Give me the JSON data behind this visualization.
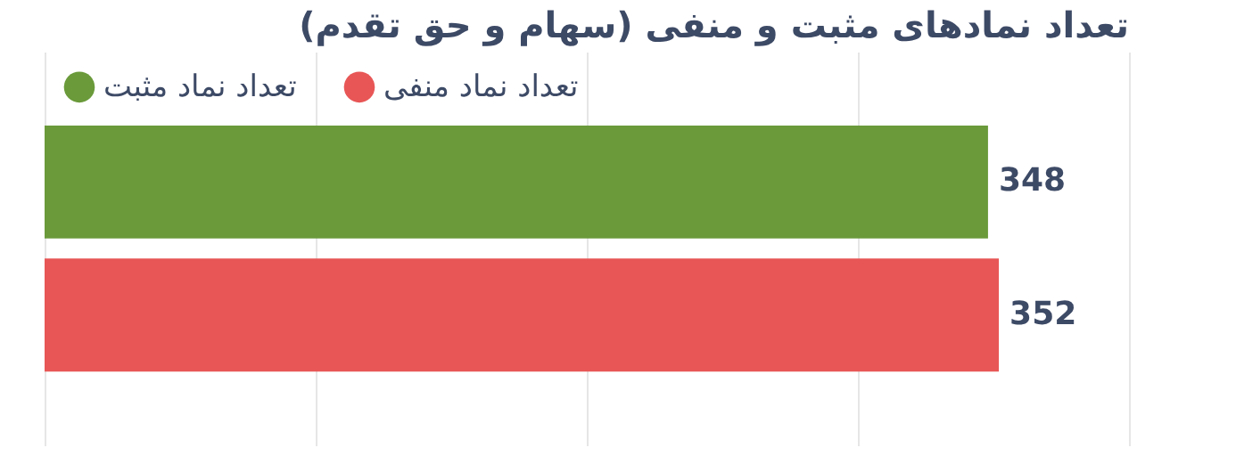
{
  "chart_data": {
    "type": "bar",
    "orientation": "horizontal",
    "title": "تعداد نمادهای مثبت و منفی (سهام و حق تقدم)",
    "categories": [
      null
    ],
    "series": [
      {
        "name": "تعداد نماد مثبت",
        "color": "#6a9a3a",
        "values": [
          348
        ]
      },
      {
        "name": "تعداد نماد منفی",
        "color": "#e85656",
        "values": [
          352
        ]
      }
    ],
    "xlim": [
      0,
      400
    ],
    "xticks": [
      {
        "value": 0,
        "label": null
      },
      {
        "value": 100,
        "label": null
      },
      {
        "value": 200,
        "label": null
      },
      {
        "value": 300,
        "label": null
      },
      {
        "value": 400,
        "label": null
      }
    ],
    "tick_labels": false,
    "grid": "x",
    "legend": "top left",
    "data_labels": true
  }
}
